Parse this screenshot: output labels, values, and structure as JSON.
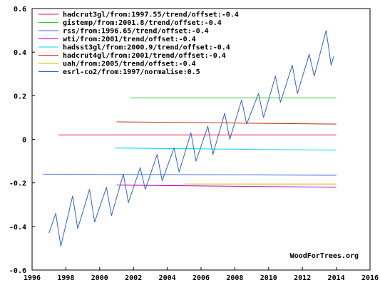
{
  "chart_data": {
    "type": "line",
    "title": "",
    "xlabel": "",
    "ylabel": "",
    "xlim": [
      1996,
      2016
    ],
    "ylim": [
      -0.6,
      0.6
    ],
    "x_ticks": [
      1996,
      1998,
      2000,
      2002,
      2004,
      2006,
      2008,
      2010,
      2012,
      2014,
      2016
    ],
    "y_ticks": [
      -0.6,
      -0.4,
      -0.2,
      0,
      0.2,
      0.4,
      0.6
    ],
    "y_tick_labels": [
      "-0.6",
      "-0.4",
      "-0.2",
      "0",
      "0.2",
      "0.4",
      "0.6"
    ],
    "legend_position": "top-left",
    "watermark": "WoodForTrees.org",
    "series": [
      {
        "name": "hadcrut3gl/from:1997.55/trend/offset:-0.4",
        "color": "#dc143c",
        "x": [
          1997.55,
          2014.0
        ],
        "y": [
          0.02,
          0.02
        ]
      },
      {
        "name": "gistemp/from:2001.8/trend/offset:-0.4",
        "color": "#32cd32",
        "x": [
          2001.8,
          2014.0
        ],
        "y": [
          0.19,
          0.19
        ]
      },
      {
        "name": "rss/from:1996.65/trend/offset:-0.4",
        "color": "#4169e1",
        "x": [
          1996.65,
          2014.0
        ],
        "y": [
          -0.16,
          -0.165
        ]
      },
      {
        "name": "wti/from:2001/trend/offset:-0.4",
        "color": "#c000c0",
        "x": [
          2001.0,
          2014.0
        ],
        "y": [
          -0.21,
          -0.22
        ]
      },
      {
        "name": "hadsst3gl/from:2000.9/trend/offset:-0.4",
        "color": "#00d8e8",
        "x": [
          2000.9,
          2014.0
        ],
        "y": [
          -0.04,
          -0.05
        ]
      },
      {
        "name": "hadcrut4gl/from:2001/trend/offset:-0.4",
        "color": "#c03008",
        "x": [
          2001.0,
          2014.0
        ],
        "y": [
          0.08,
          0.07
        ]
      },
      {
        "name": "uah/from:2005/trend/offset:-0.4",
        "color": "#c8b400",
        "x": [
          2005.0,
          2014.0
        ],
        "y": [
          -0.205,
          -0.205
        ]
      },
      {
        "name": "esrl-co2/from:1997/normalise:0.5",
        "color": "#3060d8",
        "x": [
          1997.0,
          1997.4,
          1997.7,
          1998.4,
          1998.7,
          1999.4,
          1999.7,
          2000.4,
          2000.7,
          2001.4,
          2001.7,
          2002.4,
          2002.7,
          2003.4,
          2003.7,
          2004.4,
          2004.7,
          2005.4,
          2005.7,
          2006.4,
          2006.7,
          2007.4,
          2007.7,
          2008.4,
          2008.7,
          2009.4,
          2009.7,
          2010.4,
          2010.7,
          2011.4,
          2011.7,
          2012.4,
          2012.7,
          2013.4,
          2013.7,
          2013.85
        ],
        "y": [
          -0.43,
          -0.34,
          -0.49,
          -0.26,
          -0.41,
          -0.23,
          -0.38,
          -0.22,
          -0.35,
          -0.16,
          -0.29,
          -0.13,
          -0.23,
          -0.07,
          -0.19,
          -0.04,
          -0.15,
          0.03,
          -0.1,
          0.06,
          -0.07,
          0.12,
          0.0,
          0.18,
          0.07,
          0.21,
          0.1,
          0.29,
          0.17,
          0.34,
          0.21,
          0.39,
          0.29,
          0.5,
          0.34,
          0.38
        ]
      }
    ]
  }
}
